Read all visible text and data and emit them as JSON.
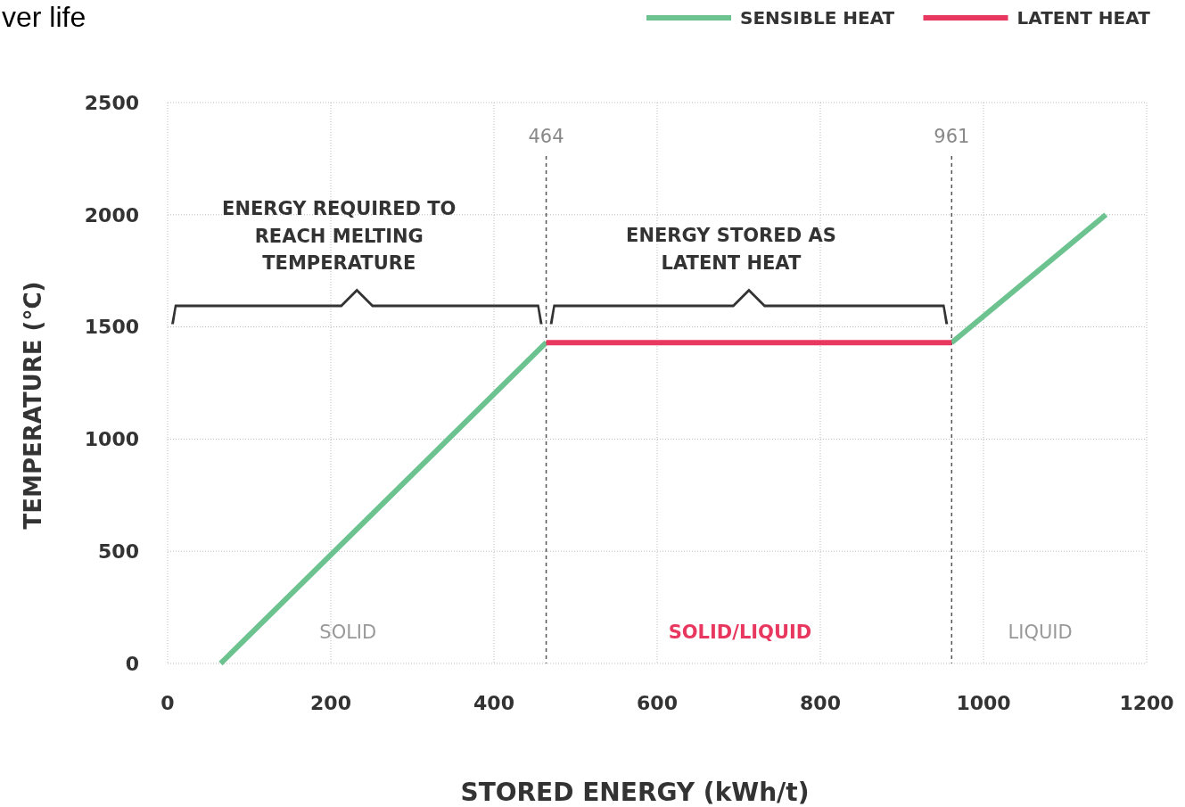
{
  "chart_data": {
    "type": "line",
    "title": "ver life",
    "xlabel": "STORED ENERGY (kWh/t)",
    "ylabel": "TEMPERATURE (°C)",
    "xlim": [
      0,
      1200
    ],
    "xticks": [
      0,
      200,
      400,
      600,
      800,
      1000,
      1200
    ],
    "ylim": [
      0,
      2500
    ],
    "yticks": [
      0,
      500,
      1000,
      1500,
      2000,
      2500
    ],
    "grid": true,
    "legend": "top right",
    "series": [
      {
        "name": "SENSIBLE HEAT",
        "color": "#6cc38f",
        "x": [
          65,
          464,
          700,
          961,
          1150
        ],
        "values": [
          0,
          1430,
          null,
          1430,
          2000
        ]
      },
      {
        "name": "LATENT HEAT",
        "color": "#e8385f",
        "x": [
          464,
          961
        ],
        "values": [
          1430,
          1430
        ]
      }
    ],
    "ref_lines": [
      {
        "axis": "x",
        "value": 464,
        "label": "464",
        "line_style": "dashed"
      },
      {
        "axis": "x",
        "value": 961,
        "label": "961",
        "line_style": "dashed"
      }
    ],
    "annotations": [
      "ENERGY REQUIRED TO\nREACH MELTING\nTEMPERATURE",
      "ENERGY STORED AS\nLATENT HEAT",
      "SOLID",
      "SOLID/LIQUID",
      "LIQUID"
    ]
  }
}
